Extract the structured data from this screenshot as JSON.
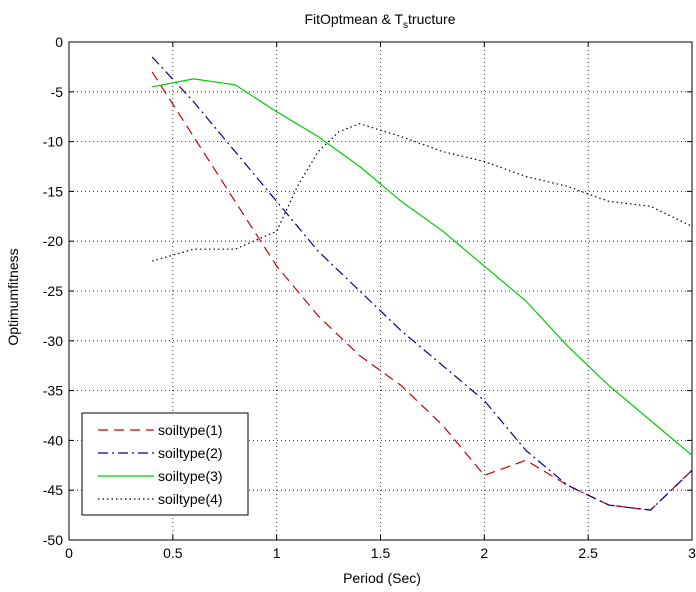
{
  "chart_data": {
    "type": "line",
    "title_main": "FitOptmean & T",
    "title_sub": "s",
    "title_rest": "tructure",
    "xlabel": "Period (Sec)",
    "ylabel": "Optimumfitness",
    "xlim": [
      0,
      3
    ],
    "ylim": [
      -50,
      0
    ],
    "xticks": [
      "0",
      "0.5",
      "1",
      "1.5",
      "2",
      "2.5",
      "3"
    ],
    "xtick_values": [
      0,
      0.5,
      1,
      1.5,
      2,
      2.5,
      3
    ],
    "yticks": [
      "0",
      "-5",
      "-10",
      "-15",
      "-20",
      "-25",
      "-30",
      "-35",
      "-40",
      "-45",
      "-50"
    ],
    "ytick_values": [
      0,
      -5,
      -10,
      -15,
      -20,
      -25,
      -30,
      -35,
      -40,
      -45,
      -50
    ],
    "grid": true,
    "legend_position": "bottom-left",
    "series": [
      {
        "name": "soiltype(1)",
        "color": "#cc0000",
        "dash": "dashed",
        "x": [
          0.4,
          0.6,
          0.8,
          1.0,
          1.2,
          1.4,
          1.6,
          1.8,
          2.0,
          2.2,
          2.4,
          2.6,
          2.8,
          3.0
        ],
        "y": [
          -3.0,
          -9.5,
          -16.0,
          -22.5,
          -27.5,
          -31.5,
          -34.5,
          -38.5,
          -43.5,
          -42.0,
          -44.5,
          -46.5,
          -47.0,
          -43.0
        ]
      },
      {
        "name": "soiltype(2)",
        "color": "#000099",
        "dash": "dashdot",
        "x": [
          0.4,
          0.6,
          0.8,
          1.0,
          1.2,
          1.4,
          1.6,
          1.8,
          2.0,
          2.2,
          2.4,
          2.6,
          2.8,
          3.0
        ],
        "y": [
          -1.5,
          -6.0,
          -11.0,
          -16.0,
          -21.0,
          -25.0,
          -29.0,
          -32.5,
          -36.0,
          -41.0,
          -44.5,
          -46.5,
          -47.0,
          -43.0
        ]
      },
      {
        "name": "soiltype(3)",
        "color": "#00cc00",
        "dash": "solid",
        "x": [
          0.4,
          0.6,
          0.8,
          1.0,
          1.2,
          1.4,
          1.6,
          1.8,
          2.0,
          2.2,
          2.4,
          2.6,
          2.8,
          3.0
        ],
        "y": [
          -4.5,
          -3.7,
          -4.3,
          -7.0,
          -9.5,
          -12.5,
          -16.0,
          -19.0,
          -22.5,
          -26.0,
          -30.5,
          -34.5,
          -38.0,
          -41.5
        ]
      },
      {
        "name": "soiltype(4)",
        "color": "#000000",
        "dash": "dotted",
        "x": [
          0.4,
          0.6,
          0.8,
          1.0,
          1.1,
          1.2,
          1.3,
          1.4,
          1.6,
          1.8,
          2.0,
          2.2,
          2.4,
          2.6,
          2.8,
          3.0
        ],
        "y": [
          -22.0,
          -20.8,
          -20.8,
          -19.0,
          -14.5,
          -11.0,
          -9.0,
          -8.2,
          -9.5,
          -11.0,
          -12.0,
          -13.5,
          -14.5,
          -16.0,
          -16.5,
          -18.5
        ]
      }
    ]
  }
}
